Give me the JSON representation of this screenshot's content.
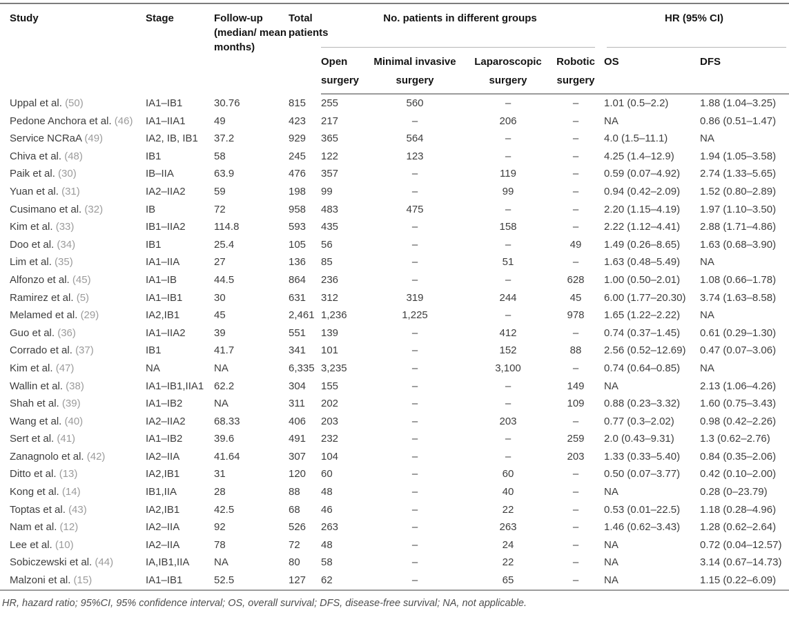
{
  "table": {
    "header": {
      "study": "Study",
      "stage": "Stage",
      "followup": "Follow-up (median/ mean months)",
      "total": "Total patients",
      "groups_label": "No. patients in different groups",
      "hr_label": "HR (95% CI)",
      "open": "Open surgery",
      "minimal": "Minimal invasive surgery",
      "laparoscopic": "Laparoscopic surgery",
      "robotic": "Robotic surgery",
      "os": "OS",
      "dfs": "DFS"
    },
    "rows": [
      {
        "name": "Uppal et al.",
        "ref": "(50)",
        "stage": "IA1–IB1",
        "followup": "30.76",
        "total": "815",
        "open": "255",
        "minimal": "560",
        "lap": "–",
        "robotic": "–",
        "os": "1.01 (0.5–2.2)",
        "dfs": "1.88 (1.04–3.25)"
      },
      {
        "name": "Pedone Anchora et al.",
        "ref": "(46)",
        "stage": "IA1–IIA1",
        "followup": "49",
        "total": "423",
        "open": "217",
        "minimal": "–",
        "lap": "206",
        "robotic": "–",
        "os": "NA",
        "dfs": "0.86 (0.51–1.47)"
      },
      {
        "name": "Service NCRaA",
        "ref": "(49)",
        "stage": "IA2, IB, IB1",
        "followup": "37.2",
        "total": "929",
        "open": "365",
        "minimal": "564",
        "lap": "–",
        "robotic": "–",
        "os": "4.0 (1.5–11.1)",
        "dfs": "NA"
      },
      {
        "name": "Chiva et al.",
        "ref": "(48)",
        "stage": "IB1",
        "followup": "58",
        "total": "245",
        "open": "122",
        "minimal": "123",
        "lap": "–",
        "robotic": "–",
        "os": "4.25 (1.4–12.9)",
        "dfs": "1.94 (1.05–3.58)"
      },
      {
        "name": "Paik et al.",
        "ref": "(30)",
        "stage": "IB–IIA",
        "followup": "63.9",
        "total": "476",
        "open": "357",
        "minimal": "–",
        "lap": "119",
        "robotic": "–",
        "os": "0.59 (0.07–4.92)",
        "dfs": "2.74 (1.33–5.65)"
      },
      {
        "name": "Yuan et al.",
        "ref": "(31)",
        "stage": "IA2–IIA2",
        "followup": "59",
        "total": "198",
        "open": "99",
        "minimal": "–",
        "lap": "99",
        "robotic": "–",
        "os": "0.94 (0.42–2.09)",
        "dfs": "1.52 (0.80–2.89)"
      },
      {
        "name": "Cusimano et al.",
        "ref": "(32)",
        "stage": "IB",
        "followup": "72",
        "total": "958",
        "open": "483",
        "minimal": "475",
        "lap": "–",
        "robotic": "–",
        "os": "2.20 (1.15–4.19)",
        "dfs": "1.97 (1.10–3.50)"
      },
      {
        "name": "Kim et al.",
        "ref": "(33)",
        "stage": "IB1–IIA2",
        "followup": "114.8",
        "total": "593",
        "open": "435",
        "minimal": "–",
        "lap": "158",
        "robotic": "–",
        "os": "2.22 (1.12–4.41)",
        "dfs": "2.88 (1.71–4.86)"
      },
      {
        "name": "Doo et al.",
        "ref": "(34)",
        "stage": "IB1",
        "followup": "25.4",
        "total": "105",
        "open": "56",
        "minimal": "–",
        "lap": "–",
        "robotic": "49",
        "os": "1.49 (0.26–8.65)",
        "dfs": "1.63 (0.68–3.90)"
      },
      {
        "name": "Lim et al.",
        "ref": "(35)",
        "stage": "IA1–IIA",
        "followup": "27",
        "total": "136",
        "open": "85",
        "minimal": "–",
        "lap": "51",
        "robotic": "–",
        "os": "1.63 (0.48–5.49)",
        "dfs": "NA"
      },
      {
        "name": "Alfonzo et al.",
        "ref": "(45)",
        "stage": "IA1–IB",
        "followup": "44.5",
        "total": "864",
        "open": "236",
        "minimal": "–",
        "lap": "–",
        "robotic": "628",
        "os": "1.00 (0.50–2.01)",
        "dfs": "1.08 (0.66–1.78)"
      },
      {
        "name": "Ramirez et al.",
        "ref": "(5)",
        "stage": "IA1–IB1",
        "followup": "30",
        "total": "631",
        "open": "312",
        "minimal": "319",
        "lap": "244",
        "robotic": "45",
        "os": "6.00 (1.77–20.30)",
        "dfs": "3.74 (1.63–8.58)"
      },
      {
        "name": "Melamed et al.",
        "ref": "(29)",
        "stage": "IA2,IB1",
        "followup": "45",
        "total": "2,461",
        "open": "1,236",
        "minimal": "1,225",
        "lap": "–",
        "robotic": "978",
        "os": "1.65 (1.22–2.22)",
        "dfs": "NA"
      },
      {
        "name": "Guo et al.",
        "ref": "(36)",
        "stage": "IA1–IIA2",
        "followup": "39",
        "total": "551",
        "open": "139",
        "minimal": "–",
        "lap": "412",
        "robotic": "–",
        "os": "0.74 (0.37–1.45)",
        "dfs": "0.61 (0.29–1.30)"
      },
      {
        "name": "Corrado et al.",
        "ref": "(37)",
        "stage": "IB1",
        "followup": "41.7",
        "total": "341",
        "open": "101",
        "minimal": "–",
        "lap": "152",
        "robotic": "88",
        "os": "2.56 (0.52–12.69)",
        "dfs": "0.47 (0.07–3.06)"
      },
      {
        "name": "Kim et al.",
        "ref": "(47)",
        "stage": "NA",
        "followup": "NA",
        "total": "6,335",
        "open": "3,235",
        "minimal": "–",
        "lap": "3,100",
        "robotic": "–",
        "os": "0.74 (0.64–0.85)",
        "dfs": "NA"
      },
      {
        "name": "Wallin et al.",
        "ref": "(38)",
        "stage": "IA1–IB1,IIA1",
        "followup": "62.2",
        "total": "304",
        "open": "155",
        "minimal": "–",
        "lap": "–",
        "robotic": "149",
        "os": "NA",
        "dfs": "2.13 (1.06–4.26)"
      },
      {
        "name": "Shah et al.",
        "ref": "(39)",
        "stage": "IA1–IB2",
        "followup": "NA",
        "total": "311",
        "open": "202",
        "minimal": "–",
        "lap": "–",
        "robotic": "109",
        "os": "0.88 (0.23–3.32)",
        "dfs": "1.60 (0.75–3.43)"
      },
      {
        "name": "Wang et al.",
        "ref": "(40)",
        "stage": "IA2–IIA2",
        "followup": "68.33",
        "total": "406",
        "open": "203",
        "minimal": "–",
        "lap": "203",
        "robotic": "–",
        "os": "0.77 (0.3–2.02)",
        "dfs": "0.98 (0.42–2.26)"
      },
      {
        "name": "Sert et al.",
        "ref": "(41)",
        "stage": "IA1–IB2",
        "followup": "39.6",
        "total": "491",
        "open": "232",
        "minimal": "–",
        "lap": "–",
        "robotic": "259",
        "os": "2.0 (0.43–9.31)",
        "dfs": "1.3 (0.62–2.76)"
      },
      {
        "name": "Zanagnolo et al.",
        "ref": "(42)",
        "stage": "IA2–IIA",
        "followup": "41.64",
        "total": "307",
        "open": "104",
        "minimal": "–",
        "lap": "–",
        "robotic": "203",
        "os": "1.33 (0.33–5.40)",
        "dfs": "0.84 (0.35–2.06)"
      },
      {
        "name": "Ditto et al.",
        "ref": "(13)",
        "stage": "IA2,IB1",
        "followup": "31",
        "total": "120",
        "open": "60",
        "minimal": "–",
        "lap": "60",
        "robotic": "–",
        "os": "0.50 (0.07–3.77)",
        "dfs": "0.42 (0.10–2.00)"
      },
      {
        "name": "Kong et al.",
        "ref": "(14)",
        "stage": "IB1,IIA",
        "followup": "28",
        "total": "88",
        "open": "48",
        "minimal": "–",
        "lap": "40",
        "robotic": "–",
        "os": "NA",
        "dfs": "0.28 (0–23.79)"
      },
      {
        "name": "Toptas et al.",
        "ref": "(43)",
        "stage": "IA2,IB1",
        "followup": "42.5",
        "total": "68",
        "open": "46",
        "minimal": "–",
        "lap": "22",
        "robotic": "–",
        "os": "0.53 (0.01–22.5)",
        "dfs": "1.18 (0.28–4.96)"
      },
      {
        "name": "Nam et al.",
        "ref": "(12)",
        "stage": "IA2–IIA",
        "followup": "92",
        "total": "526",
        "open": "263",
        "minimal": "–",
        "lap": "263",
        "robotic": "–",
        "os": "1.46 (0.62–3.43)",
        "dfs": "1.28 (0.62–2.64)"
      },
      {
        "name": "Lee et al.",
        "ref": "(10)",
        "stage": "IA2–IIA",
        "followup": "78",
        "total": "72",
        "open": "48",
        "minimal": "–",
        "lap": "24",
        "robotic": "–",
        "os": "NA",
        "dfs": "0.72 (0.04–12.57)"
      },
      {
        "name": "Sobiczewski et al.",
        "ref": "(44)",
        "stage": "IA,IB1,IIA",
        "followup": "NA",
        "total": "80",
        "open": "58",
        "minimal": "–",
        "lap": "22",
        "robotic": "–",
        "os": "NA",
        "dfs": "3.14 (0.67–14.73)"
      },
      {
        "name": "Malzoni et al.",
        "ref": "(15)",
        "stage": "IA1–IB1",
        "followup": "52.5",
        "total": "127",
        "open": "62",
        "minimal": "–",
        "lap": "65",
        "robotic": "–",
        "os": "NA",
        "dfs": "1.15 (0.22–6.09)"
      }
    ],
    "footnote": "HR, hazard ratio; 95%CI, 95% confidence interval; OS, overall survival; DFS, disease-free survival; NA, not applicable."
  }
}
